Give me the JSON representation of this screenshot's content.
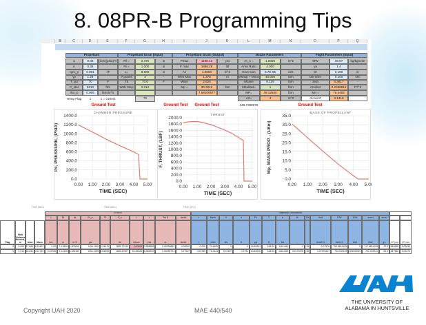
{
  "slide": {
    "title": "8. 08PR-B Programming Tips",
    "footer_left": "Copyright UAH 2020",
    "footer_center": "MAE 440/540",
    "logo": {
      "mark": "UAH",
      "line1": "THE UNIVERSITY OF",
      "line2": "ALABAMA IN HUNTSVILLE",
      "color": "#0a84d0"
    }
  },
  "colors": {
    "section_header": "#95b3d7",
    "label_cell": "#bfbfbf",
    "input_blue": "#dbe9f5",
    "input_green": "#d8e4bc",
    "output_orange": "#fac090",
    "highlight_pink": "#f4b6c2",
    "erosion": "#e6b8b7",
    "trajectory": "#8eb4e3",
    "series": "#e07b74"
  },
  "sheet": {
    "columns": [
      "B",
      "C",
      "D",
      "E",
      "F",
      "G",
      "H",
      "I",
      "J",
      "K",
      "L",
      "M",
      "N",
      "O",
      "P",
      "Q"
    ],
    "sections": [
      {
        "title": "Propellant",
        "rows": [
          [
            "a",
            "0.03",
            "(in/s)(psia)^n"
          ],
          [
            "n",
            "0.35",
            ""
          ],
          [
            "rgm_p",
            "0.001",
            "-/F"
          ],
          [
            "γp",
            "1.26",
            ""
          ],
          [
            "T_pd",
            "70",
            "F"
          ],
          [
            "C_star",
            "5210",
            "ft/s"
          ],
          [
            "rho_p",
            "0.065",
            "lbm/in^3"
          ]
        ]
      },
      {
        "title": "Propellant Grain (Input)",
        "rows": [
          [
            "Rf =",
            "2.375",
            "in"
          ],
          [
            "Ri =",
            "1.000",
            "in"
          ],
          [
            "L=",
            "8.000",
            "in"
          ],
          [
            "# grains",
            "4",
            "-"
          ],
          [
            "Tb",
            "70.0",
            "F"
          ],
          [
            "Web Step",
            "0.010",
            ""
          ],
          [
            "",
            "",
            ""
          ]
        ]
      },
      {
        "title": "Propellant Grain (Output)",
        "rows": [
          [
            "Pmax",
            "1196.12",
            "psi"
          ],
          [
            "F max",
            "1886.28",
            "lbf"
          ],
          [
            "Ae",
            "4.0000",
            "in^2"
          ],
          [
            "Web Max",
            "1.375",
            "in"
          ],
          [
            "Wam",
            "2.625",
            ""
          ],
          [
            "Mp =",
            "30.3242",
            "lbm"
          ],
          [
            "",
            "7.58100577",
            ""
          ]
        ]
      },
      {
        "title": "Nozzle Parameters",
        "rows": [
          [
            "At_n =",
            "1.0000",
            "in^2"
          ],
          [
            "Area Ratio",
            "4.000",
            ""
          ],
          [
            "Eros Con",
            "8.7E-05",
            "in/s"
          ],
          [
            "Mshup + Mnoz",
            "40.000",
            "lbm"
          ],
          [
            "Mcase",
            "8.125",
            "lbm"
          ],
          [
            "Mballast=",
            "1",
            "lbm"
          ],
          [
            "MP=",
            "49.12500",
            "lbm"
          ],
          [
            "A2=",
            "4",
            "in^2"
          ]
        ]
      },
      {
        "title": "Flight Parameters (Input)",
        "rows": [
          [
            "MW",
            "28.97",
            "kg/kgmole"
          ],
          [
            "γa",
            "1.4",
            ""
          ],
          [
            "Dr",
            "6.190",
            "in"
          ],
          [
            "Del time",
            "0.100",
            "sec"
          ],
          [
            "zeta",
            "0.3817",
            "-"
          ],
          [
            "Arocket",
            "0.2089819",
            "FT^2"
          ],
          [
            "Mo =",
            "79.4492",
            ""
          ],
          [
            "Ab init 0",
            "3.1416",
            ""
          ]
        ]
      }
    ],
    "temp_flag": {
      "label": "Temp Flag",
      "value": "1",
      "note": "1 = correct",
      "tb": "70"
    },
    "ground_test": "Ground Test",
    "extra_value": "249.7398979"
  },
  "chart_data": [
    {
      "type": "line",
      "title": "CHAMBER PRESSURE",
      "xlabel": "TIME  (SEC)",
      "ylabel": "Pc, PRESSURE, (PSIA)",
      "xlim": [
        0,
        5
      ],
      "ylim": [
        0,
        1400
      ],
      "xticks": [
        "0.00",
        "1.00",
        "2.00",
        "3.00",
        "4.00",
        "5.00"
      ],
      "yticks": [
        "0.0",
        "200.0",
        "400.0",
        "600.0",
        "800.0",
        "1000.0",
        "1200.0",
        "1400.0"
      ],
      "grid": true,
      "x": [
        0,
        1,
        2,
        3,
        4,
        4.35,
        4.45,
        5
      ],
      "y": [
        1196,
        1040,
        880,
        735,
        600,
        540,
        0,
        0
      ]
    },
    {
      "type": "line",
      "title": "THRUST",
      "xlabel": "TIME  (SEC)",
      "ylabel": "F, THRUST, (LBF)",
      "xlim": [
        0,
        5
      ],
      "ylim": [
        0,
        2000
      ],
      "xticks": [
        "0.00",
        "1.00",
        "2.00",
        "3.00",
        "4.00",
        "5.00"
      ],
      "yticks": [
        "0.0",
        "200.0",
        "400.0",
        "600.0",
        "800.0",
        "1000.0",
        "1200.0",
        "1400.0",
        "1600.0",
        "1800.0",
        "2000.0"
      ],
      "grid": true,
      "x": [
        0,
        0.5,
        1,
        1.5,
        2,
        2.5,
        3,
        3.5,
        4,
        4.35,
        4.4,
        5
      ],
      "y": [
        1845,
        1878,
        1880,
        1840,
        1780,
        1700,
        1610,
        1510,
        1380,
        1280,
        0,
        0
      ]
    },
    {
      "type": "line",
      "title": "MASS OF PROPELLANT",
      "xlabel": "TIME  (SEC)",
      "ylabel": "Mp, MASS PROP. , (LBm)",
      "xlim": [
        0,
        5
      ],
      "ylim": [
        0,
        35
      ],
      "xticks": [
        "0.00",
        "1.00",
        "2.00",
        "3.00",
        "4.00",
        "5.00"
      ],
      "yticks": [
        "0.0",
        "5.0",
        "10.0",
        "15.0",
        "20.0",
        "25.0",
        "30.0",
        "35.0"
      ],
      "grid": true,
      "x": [
        0,
        1,
        2,
        3,
        4,
        4.3,
        5
      ],
      "y": [
        30.3,
        22.8,
        15.4,
        8.2,
        1.8,
        0,
        0
      ]
    }
  ],
  "bottom_table": {
    "axis_labels": [
      "TIME (SEC)",
      "TIME (SEC)",
      "TIME (SEC)"
    ],
    "erosion_title": "Erosion",
    "trajectory_title": "Trajectory Calculations",
    "left_headers": [
      "Flag",
      "Web Distance Burned, w",
      "Area",
      "Mass"
    ],
    "erosion_headers": [
      "t",
      "Dt",
      "At",
      "Pt_e",
      "Cf",
      "F_e",
      "I",
      "r",
      "Del D",
      "Ae/At"
    ],
    "erosion_units": [
      "sec",
      "in",
      "in^2",
      "psi",
      "-",
      "lbf",
      "lbf sec",
      "in/s",
      "in",
      "Ae/At"
    ],
    "trajectory_headers": [
      "t",
      "Mveh",
      "V",
      "h",
      "P1",
      "T",
      "a",
      "M",
      "Cd",
      "rho2",
      "F/W",
      "D/W",
      "accel",
      "accel",
      "",
      ""
    ],
    "trajectory_units": [
      "t",
      "LBm",
      "ft/s",
      "ft",
      "psi",
      "R",
      "ft/s",
      "-",
      "-",
      "lbm/ft^3",
      "lbf/s^2",
      "ft/s2",
      "ft/s2",
      "g's",
      "CF plot",
      "CF min"
    ],
    "rows": [
      [
        "0",
        "0.000",
        "317.694",
        "30.32422",
        "0.00",
        "1.12636",
        "1.000000",
        "1196.1196",
        "1.54470",
        "1850.72119",
        "0.00000",
        "0.358588",
        "0.00299852",
        "4.00000",
        "0.000",
        "79.4492",
        "0",
        "0",
        "14.69241",
        "518.00",
        "1116.064",
        "0",
        "0.15",
        "0.07576",
        "750.9834105",
        "0",
        "717.9834105",
        "22.3",
        "1.544698",
        "0.03034"
      ],
      [
        "0",
        "0.010",
        "318.691",
        "30.11743",
        "0.02789",
        "1.13125",
        "1.005159",
        "1194.4195",
        "1.54390",
        "1853.67507",
        "51.65269",
        "0.358200",
        "0.00299701",
        "3.97947",
        "0.02789",
        "79.2424",
        "20.0197",
        "0.2791",
        "14.69226",
        "518.00",
        "1116.063",
        "0.0179378",
        "0.15",
        "0.07576447",
        "753.239149",
        "0.00000092",
        "721.033741",
        "22.4",
        "1.547986",
        "0.03474"
      ]
    ]
  }
}
